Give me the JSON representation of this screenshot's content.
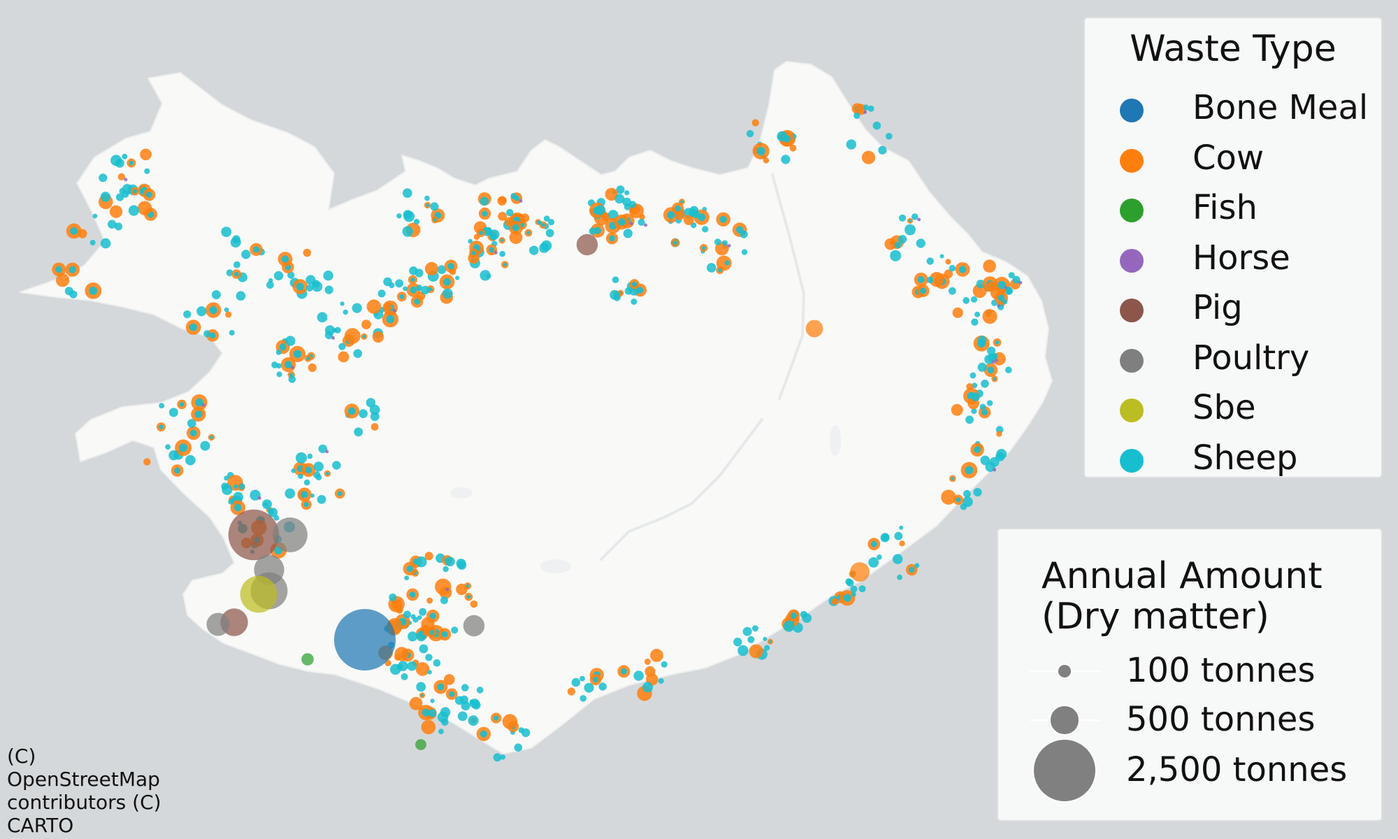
{
  "map": {
    "land_color": "#f9f9f8",
    "water_color": "#d4d8da"
  },
  "legend_type": {
    "title": "Waste Type",
    "items": [
      {
        "label": "Bone Meal",
        "color": "#1f77b4"
      },
      {
        "label": "Cow",
        "color": "#ff7f0e"
      },
      {
        "label": "Fish",
        "color": "#2ca02c"
      },
      {
        "label": "Horse",
        "color": "#9467bd"
      },
      {
        "label": "Pig",
        "color": "#8c564b"
      },
      {
        "label": "Poultry",
        "color": "#7f7f7f"
      },
      {
        "label": "Sbe",
        "color": "#bcbd22"
      },
      {
        "label": "Sheep",
        "color": "#17becf"
      }
    ]
  },
  "legend_size": {
    "title_line1": "Annual Amount",
    "title_line2": "(Dry matter)",
    "items": [
      {
        "label": "100 tonnes",
        "tonnes": 100
      },
      {
        "label": "500 tonnes",
        "tonnes": 500
      },
      {
        "label": "2,500 tonnes",
        "tonnes": 2500
      }
    ]
  },
  "attribution": [
    "(C)",
    "OpenStreetMap",
    "contributors (C)",
    "CARTO"
  ],
  "map_data": {
    "type": "proportional-symbol map",
    "size_variable": "Annual Amount (Dry matter)",
    "color_variable": "Waste Type",
    "major_sites": [
      {
        "type": "Bone Meal",
        "tonnes": 2500
      },
      {
        "type": "Pig",
        "tonnes": 1700
      },
      {
        "type": "Poultry",
        "tonnes": 900
      },
      {
        "type": "Poultry",
        "tonnes": 800
      },
      {
        "type": "Poultry",
        "tonnes": 600
      },
      {
        "type": "Sbe",
        "tonnes": 900
      },
      {
        "type": "Pig",
        "tonnes": 500
      },
      {
        "type": "Poultry",
        "tonnes": 350
      },
      {
        "type": "Pig",
        "tonnes": 300
      },
      {
        "type": "Poultry",
        "tonnes": 300
      },
      {
        "type": "Cow",
        "tonnes": 250
      },
      {
        "type": "Cow",
        "tonnes": 200
      },
      {
        "type": "Fish",
        "tonnes": 100
      },
      {
        "type": "Fish",
        "tonnes": 80
      }
    ]
  }
}
